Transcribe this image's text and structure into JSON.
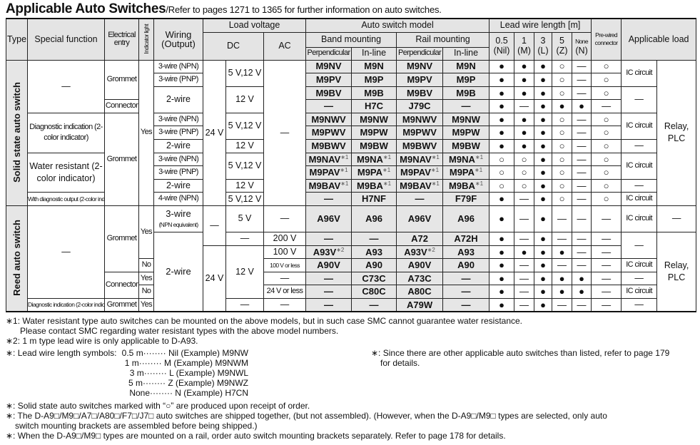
{
  "title": {
    "main": "Applicable Auto Switches",
    "sub": "/Refer to pages 1271 to 1365 for further information on auto switches."
  },
  "header": {
    "type": "Type",
    "special_function": "Special function",
    "electrical_entry": "Electrical entry",
    "indicator_light": "Indicator light",
    "wiring": "Wiring (Output)",
    "load_voltage": "Load voltage",
    "dc": "DC",
    "ac": "AC",
    "auto_switch_model": "Auto switch model",
    "band_mounting": "Band mounting",
    "rail_mounting": "Rail mounting",
    "perpendicular": "Perpendicular",
    "in_line": "In-line",
    "lead_wire_length": "Lead wire length [m]",
    "lead": [
      {
        "len": "0.5",
        "sym": "(Nil)"
      },
      {
        "len": "1",
        "sym": "(M)"
      },
      {
        "len": "3",
        "sym": "(L)"
      },
      {
        "len": "5",
        "sym": "(Z)"
      },
      {
        "len": "None",
        "sym": "(N)"
      }
    ],
    "pre_wired": "Pre-wired connector",
    "applicable_load": "Applicable load"
  },
  "solid_state": {
    "type_label": "Solid state auto switch",
    "special": [
      "—",
      "Diagnostic indication (2-color indicator)",
      "Water resistant (2-color indicator)",
      "With diagnostic output (2-color indicator)"
    ],
    "entry": [
      "Grommet",
      "Connector",
      "Grommet"
    ],
    "indicator": [
      "Yes"
    ],
    "wiring": [
      "3-wire (NPN)",
      "3-wire (PNP)",
      "2-wire",
      "3-wire (NPN)",
      "3-wire (PNP)",
      "2-wire",
      "3-wire (NPN)",
      "3-wire (PNP)",
      "2-wire",
      "4-wire (NPN)"
    ],
    "dc24": [
      "24 V"
    ],
    "dcv": [
      "5 V,12 V",
      "12 V",
      "5 V,12 V",
      "12 V",
      "5 V,12 V",
      "12 V",
      "5 V,12 V"
    ],
    "ac": [
      "—"
    ],
    "ic": [
      "IC circuit",
      "—",
      "IC circuit",
      "—",
      "IC circuit",
      "—",
      "IC circuit"
    ],
    "relay": [
      "Relay, PLC"
    ],
    "rows": [
      {
        "models": [
          "M9NV",
          "M9N",
          "M9NV",
          "M9N"
        ],
        "lead": [
          "●",
          "●",
          "●",
          "○",
          "—",
          "○"
        ]
      },
      {
        "models": [
          "M9PV",
          "M9P",
          "M9PV",
          "M9P"
        ],
        "lead": [
          "●",
          "●",
          "●",
          "○",
          "—",
          "○"
        ]
      },
      {
        "models": [
          "M9BV",
          "M9B",
          "M9BV",
          "M9B"
        ],
        "lead": [
          "●",
          "●",
          "●",
          "○",
          "—",
          "○"
        ]
      },
      {
        "models": [
          "—",
          "H7C",
          "J79C",
          "—"
        ],
        "lead": [
          "●",
          "—",
          "●",
          "●",
          "●",
          "—"
        ]
      },
      {
        "models": [
          "M9NWV",
          "M9NW",
          "M9NWV",
          "M9NW"
        ],
        "lead": [
          "●",
          "●",
          "●",
          "○",
          "—",
          "○"
        ]
      },
      {
        "models": [
          "M9PWV",
          "M9PW",
          "M9PWV",
          "M9PW"
        ],
        "lead": [
          "●",
          "●",
          "●",
          "○",
          "—",
          "○"
        ]
      },
      {
        "models": [
          "M9BWV",
          "M9BW",
          "M9BWV",
          "M9BW"
        ],
        "lead": [
          "●",
          "●",
          "●",
          "○",
          "—",
          "○"
        ]
      },
      {
        "models": [
          "M9NAV*1",
          "M9NA*1",
          "M9NAV*1",
          "M9NA*1"
        ],
        "lead": [
          "○",
          "○",
          "●",
          "○",
          "—",
          "○"
        ]
      },
      {
        "models": [
          "M9PAV*1",
          "M9PA*1",
          "M9PAV*1",
          "M9PA*1"
        ],
        "lead": [
          "○",
          "○",
          "●",
          "○",
          "—",
          "○"
        ]
      },
      {
        "models": [
          "M9BAV*1",
          "M9BA*1",
          "M9BAV*1",
          "M9BA*1"
        ],
        "lead": [
          "○",
          "○",
          "●",
          "○",
          "—",
          "○"
        ]
      },
      {
        "models": [
          "—",
          "H7NF",
          "—",
          "F79F"
        ],
        "lead": [
          "●",
          "—",
          "●",
          "○",
          "—",
          "○"
        ]
      }
    ]
  },
  "reed": {
    "type_label": "Reed auto switch",
    "special": [
      "—",
      "Diagnostic indication (2-color indicator)"
    ],
    "entry": [
      "Grommet",
      "Connector",
      "Grommet"
    ],
    "indicator": [
      "Yes",
      "No",
      "Yes",
      "No",
      "Yes"
    ],
    "wiring": [
      {
        "main": "3-wire",
        "sub": "(NPN equivalent)"
      },
      {
        "main": "2-wire"
      }
    ],
    "dc24": [
      "—",
      "24 V"
    ],
    "dcv": [
      "5 V",
      "—",
      "12 V",
      "—"
    ],
    "ac": [
      "—",
      "200 V",
      "100 V",
      "100 V or less",
      "—",
      "24 V or less",
      "—"
    ],
    "ic": [
      "IC circuit",
      "—",
      "IC circuit",
      "—",
      "IC circuit",
      "—"
    ],
    "relay": [
      "—",
      "Relay, PLC"
    ],
    "rows": [
      {
        "models": [
          "A96V",
          "A96",
          "A96V",
          "A96"
        ],
        "lead": [
          "●",
          "—",
          "●",
          "—",
          "—",
          "—"
        ]
      },
      {
        "models": [
          "—",
          "—",
          "A72",
          "A72H"
        ],
        "lead": [
          "●",
          "—",
          "●",
          "—",
          "—",
          "—"
        ]
      },
      {
        "models": [
          "A93V*2",
          "A93",
          "A93V*2",
          "A93"
        ],
        "lead": [
          "●",
          "●",
          "●",
          "●",
          "—",
          "—"
        ]
      },
      {
        "models": [
          "A90V",
          "A90",
          "A90V",
          "A90"
        ],
        "lead": [
          "●",
          "—",
          "●",
          "—",
          "—",
          "—"
        ]
      },
      {
        "models": [
          "—",
          "C73C",
          "A73C",
          "—"
        ],
        "lead": [
          "●",
          "—",
          "●",
          "●",
          "●",
          "—"
        ]
      },
      {
        "models": [
          "—",
          "C80C",
          "A80C",
          "—"
        ],
        "lead": [
          "●",
          "—",
          "●",
          "●",
          "●",
          "—"
        ]
      },
      {
        "models": [
          "—",
          "—",
          "A79W",
          "—"
        ],
        "lead": [
          "●",
          "—",
          "●",
          "—",
          "—",
          "—"
        ]
      }
    ]
  },
  "notes": {
    "n1": "∗1: Water resistant type auto switches can be mounted on the above models, but in such case SMC cannot guarantee water resistance.",
    "n1b": "Please contact SMC regarding water resistant types with the above model numbers.",
    "n2": "∗2: 1 m type lead wire is only applicable to D-A93.",
    "lead_label": "∗: Lead wire length symbols:",
    "lead_symbols": [
      "0.5 m········ Nil (Example) M9NW",
      "1 m········ M (Example) M9NWM",
      "3 m········ L (Example) M9NWL",
      "5 m········ Z (Example) M9NWZ",
      "None········ N (Example) H7CN"
    ],
    "other": "∗: Since there are other applicable auto switches than listed, refer to page 179",
    "other_b": "for details.",
    "s1": "∗: Solid state auto switches marked with “○” are produced upon receipt of order.",
    "s2": "∗: The D-A9□/M9□/A7□/A80□/F7□/J7□ auto switches are shipped together, (but not assembled). (However, when the D-A9□/M9□ types are selected, only auto",
    "s2b": "switch mounting brackets are assembled before being shipped.)",
    "s3": "∗: When the D-A9□/M9□ types are mounted on a rail, order auto switch mounting brackets separately. Refer to page 178 for details."
  }
}
